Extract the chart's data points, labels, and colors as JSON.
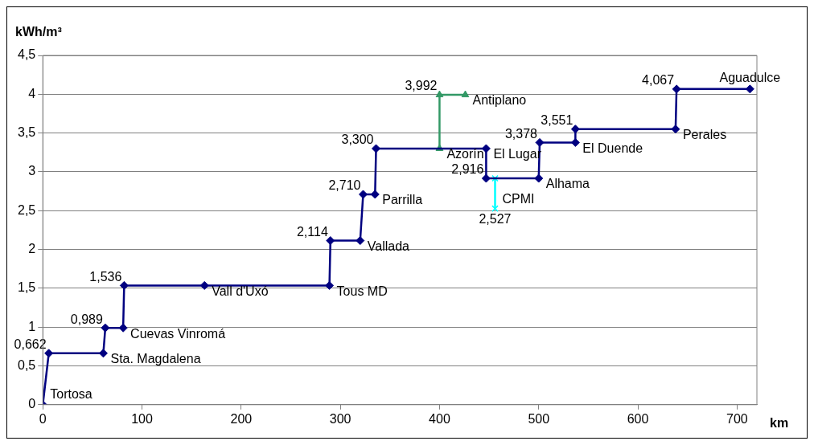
{
  "chart_data": {
    "type": "line",
    "xlabel": "km",
    "ylabel": "kWh/m³",
    "xlim": [
      0,
      720
    ],
    "xticks": [
      0,
      100,
      200,
      300,
      400,
      500,
      600,
      700
    ],
    "ylim": [
      0,
      4.5
    ],
    "yticks": [
      0,
      {
        "value": 0.5,
        "label": "0,5"
      },
      1,
      {
        "value": 1.5,
        "label": "1,5"
      },
      2,
      {
        "value": 2.5,
        "label": "2,5"
      },
      3,
      {
        "value": 3.5,
        "label": "3,5"
      },
      4,
      {
        "value": 4.5,
        "label": "4,5"
      }
    ],
    "grid": "y",
    "legend": false,
    "line_style": "solid",
    "series": [
      {
        "type": "line",
        "color": "#000080",
        "marker": "diamond",
        "x": [
          0,
          6,
          61,
          63,
          81,
          82,
          163,
          289,
          290,
          320,
          323,
          335,
          336,
          447,
          447,
          500,
          501,
          537,
          537,
          638,
          639,
          713
        ],
        "values": [
          0,
          0.662,
          0.662,
          0.989,
          0.989,
          1.536,
          1.536,
          1.536,
          2.114,
          2.114,
          2.71,
          2.71,
          3.3,
          3.3,
          2.916,
          2.916,
          3.378,
          3.378,
          3.551,
          3.551,
          4.067,
          4.067
        ],
        "value_labels": [
          null,
          "0,662",
          null,
          "0,989",
          null,
          "1,536",
          null,
          null,
          "2,114",
          null,
          "2,710",
          null,
          "3,300",
          null,
          "2,916",
          null,
          "3,378",
          null,
          "3,551",
          null,
          "4,067",
          null
        ]
      },
      {
        "type": "line",
        "color": "#339966",
        "marker": "triangle",
        "x": [
          400,
          400,
          426
        ],
        "values": [
          3.3,
          3.992,
          3.992
        ],
        "value_labels": [
          null,
          "3,992",
          null
        ]
      },
      {
        "type": "line",
        "color": "#00ffff",
        "marker": "cross",
        "x": [
          456,
          456
        ],
        "values": [
          2.916,
          2.527
        ],
        "value_labels": [
          null,
          "2,527"
        ]
      }
    ],
    "annotations": [
      {
        "text": "Tortosa",
        "x": 0,
        "y": 0
      },
      {
        "text": "Sta. Magdalena",
        "x": 61,
        "y": 0.662
      },
      {
        "text": "Cuevas Vinromá",
        "x": 81,
        "y": 0.989
      },
      {
        "text": "Vall d'Uxó",
        "x": 163,
        "y": 1.536
      },
      {
        "text": "Tous MD",
        "x": 289,
        "y": 1.536
      },
      {
        "text": "Vallada",
        "x": 320,
        "y": 2.114
      },
      {
        "text": "Parrilla",
        "x": 335,
        "y": 2.71
      },
      {
        "text": "Azorín",
        "x": 400,
        "y": 3.3
      },
      {
        "text": "Antiplano",
        "x": 426,
        "y": 3.992
      },
      {
        "text": "El Lugar",
        "x": 447,
        "y": 3.3
      },
      {
        "text": "CPMI",
        "x": 456,
        "y": 2.72
      },
      {
        "text": "Alhama",
        "x": 500,
        "y": 2.916
      },
      {
        "text": "El Duende",
        "x": 537,
        "y": 3.378
      },
      {
        "text": "Perales",
        "x": 638,
        "y": 3.551
      },
      {
        "text": "Aguadulce",
        "x": 713,
        "y": 4.067
      }
    ]
  }
}
